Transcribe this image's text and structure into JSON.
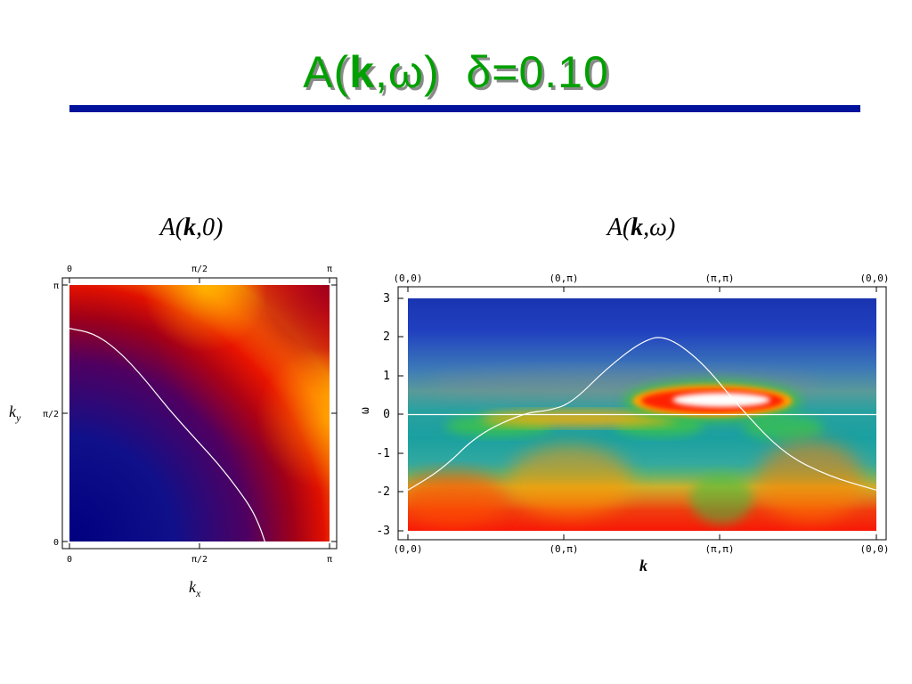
{
  "slide": {
    "title": "A(k,ω)  δ=0.10",
    "title_parts": {
      "a": "A(",
      "k": "k",
      "rest": ",ω)",
      "delta": "δ",
      "eq": "=0.10"
    },
    "colors": {
      "title": "#00a000",
      "rule": "#00129a"
    }
  },
  "chart_data": [
    {
      "type": "heatmap",
      "title": "A(k,0)",
      "title_parts": {
        "a": "A(",
        "k": "k",
        "rest": ",0)"
      },
      "xlabel": "k_x",
      "ylabel": "k_y",
      "xlabel_parts": {
        "main": "k",
        "sub": "x"
      },
      "ylabel_parts": {
        "main": "k",
        "sub": "y"
      },
      "xlim": [
        0,
        3.1416
      ],
      "ylim": [
        0,
        3.1416
      ],
      "x_ticks": [
        "0",
        "π/2",
        "π"
      ],
      "y_ticks": [
        "0",
        "π/2",
        "π"
      ],
      "colormap": [
        "#000080",
        "#8b0020",
        "#ff0000",
        "#ffc000"
      ],
      "fermi_surface": {
        "color": "#ffffff",
        "points": [
          [
            0,
            2.61
          ],
          [
            0.3,
            2.55
          ],
          [
            0.6,
            2.33
          ],
          [
            0.9,
            2.0
          ],
          [
            1.2,
            1.62
          ],
          [
            1.5,
            1.28
          ],
          [
            1.8,
            0.95
          ],
          [
            2.05,
            0.62
          ],
          [
            2.2,
            0.4
          ],
          [
            2.3,
            0.18
          ],
          [
            2.36,
            0
          ]
        ]
      }
    },
    {
      "type": "heatmap",
      "title": "A(k,ω)",
      "title_parts": {
        "a": "A(",
        "k": "k",
        "rest": ",ω)"
      },
      "xlabel": "k",
      "ylabel": "ω",
      "path": [
        "(0,0)",
        "(0,π)",
        "(π,π)",
        "(0,0)"
      ],
      "x_ticks": [
        "(0,0)",
        "(0,π)",
        "(π,π)",
        "(0,0)"
      ],
      "ylim": [
        -3,
        3
      ],
      "y_ticks": [
        "3",
        "2",
        "1",
        "0",
        "-1",
        "-2",
        "-3"
      ],
      "colormap": [
        "#2040c0",
        "#20a0a0",
        "#40c040",
        "#ffa000",
        "#ff2000",
        "#ffffff"
      ],
      "bare_dispersion": {
        "color": "#ffffff",
        "points": [
          [
            0,
            -1.95
          ],
          [
            0.15,
            -1.4
          ],
          [
            0.3,
            -0.5
          ],
          [
            0.5,
            0.05
          ],
          [
            0.6,
            0.1
          ],
          [
            0.7,
            0.3
          ],
          [
            0.85,
            1.2
          ],
          [
            1.0,
            1.9
          ],
          [
            1.1,
            2.05
          ],
          [
            1.25,
            1.4
          ],
          [
            1.4,
            0.3
          ],
          [
            1.6,
            -1.0
          ],
          [
            1.8,
            -1.6
          ],
          [
            2.0,
            -1.95
          ]
        ]
      },
      "zero_line": 0
    }
  ]
}
